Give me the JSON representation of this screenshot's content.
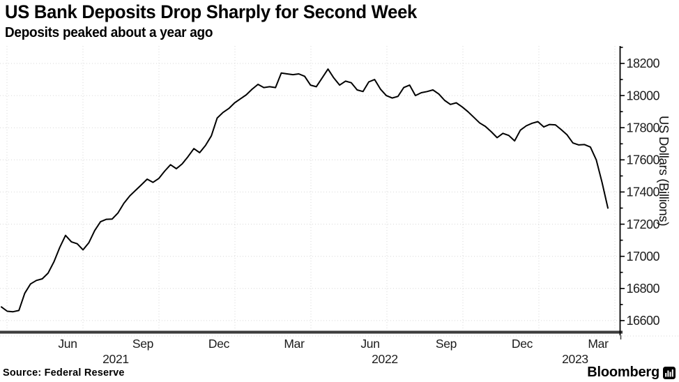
{
  "chart_data": {
    "type": "line",
    "title": "US Bank Deposits Drop Sharply for Second Week",
    "subtitle": "Deposits peaked about a year ago",
    "ylabel": "US Dollars (Billions)",
    "ylim": [
      16500,
      18300
    ],
    "ytick_labels": [
      18200,
      18000,
      17800,
      17600,
      17400,
      17200,
      17000,
      16800,
      16600
    ],
    "ytick_minor_interval": 100,
    "x_axis": {
      "month_labels": [
        "Jun",
        "Sep",
        "Dec",
        "Mar",
        "Jun",
        "Sep",
        "Dec",
        "Mar"
      ],
      "year_labels": [
        "2021",
        "2022",
        "2023"
      ]
    },
    "grid": "dotted",
    "legend": "none",
    "series": [
      {
        "name": "US bank deposits",
        "values": [
          16685,
          16658,
          16655,
          16663,
          16770,
          16828,
          16850,
          16860,
          16895,
          16965,
          17055,
          17130,
          17090,
          17078,
          17040,
          17085,
          17160,
          17215,
          17230,
          17232,
          17270,
          17330,
          17375,
          17410,
          17445,
          17480,
          17460,
          17485,
          17530,
          17570,
          17545,
          17575,
          17620,
          17670,
          17645,
          17690,
          17750,
          17860,
          17895,
          17920,
          17955,
          17980,
          18005,
          18040,
          18070,
          18050,
          18055,
          18050,
          18140,
          18135,
          18130,
          18135,
          18120,
          18065,
          18055,
          18110,
          18165,
          18110,
          18065,
          18090,
          18080,
          18035,
          18025,
          18085,
          18100,
          18040,
          18000,
          17985,
          17995,
          18050,
          18065,
          18000,
          18018,
          18025,
          18035,
          18010,
          17970,
          17945,
          17955,
          17930,
          17900,
          17865,
          17830,
          17808,
          17775,
          17738,
          17765,
          17752,
          17718,
          17785,
          17812,
          17828,
          17838,
          17805,
          17820,
          17818,
          17788,
          17756,
          17705,
          17693,
          17695,
          17680,
          17600,
          17460,
          17300
        ]
      }
    ]
  },
  "footer": {
    "source": "Source: Federal Reserve",
    "brand": "Bloomberg"
  },
  "colors": {
    "line": "#000000",
    "grid": "#d7d7d7",
    "axis_line": "#000000",
    "axis_bar": "#3c3c3c",
    "axis_bar_highlight": "#9b9b9b",
    "tick_text": "#1c1c1c"
  }
}
